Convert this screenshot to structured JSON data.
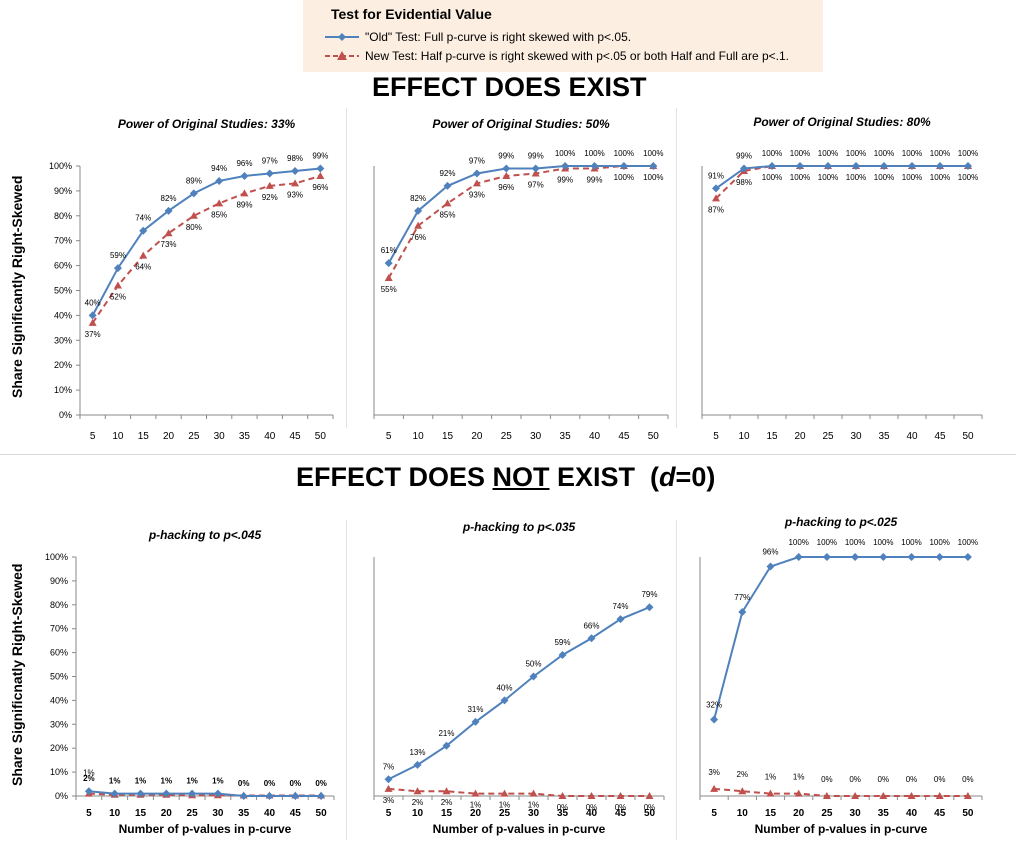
{
  "legend": {
    "title": "Test for Evidential Value",
    "old_label": "\"Old\" Test: Full p-curve is right skewed with p<.05.",
    "new_label": "New Test: Half p-curve is right skewed with p<.05 or both Half and Full are p<.1."
  },
  "sections": {
    "top": "EFFECT DOES EXIST",
    "bottom_pre": "EFFECT DOES ",
    "bottom_not": "NOT",
    "bottom_post": " EXIST  (",
    "bottom_d": "d",
    "bottom_end": "=0)"
  },
  "colors": {
    "old": "#4f81bd",
    "new": "#c0504d"
  },
  "chart_data": [
    {
      "type": "line",
      "title": "Power of Original Studies: 33%",
      "ylabel": "Share Significantly Right-Skewed",
      "xlabel": "",
      "x": [
        5,
        10,
        15,
        20,
        25,
        30,
        35,
        40,
        45,
        50
      ],
      "ylim": [
        0,
        100
      ],
      "series": [
        {
          "name": "\"Old\" Test",
          "values": [
            40,
            59,
            74,
            82,
            89,
            94,
            96,
            97,
            98,
            99
          ],
          "labels": [
            "40%",
            "59%",
            "74%",
            "82%",
            "89%",
            "94%",
            "96%",
            "97%",
            "98%",
            "99%"
          ]
        },
        {
          "name": "New Test",
          "values": [
            37,
            52,
            64,
            73,
            80,
            85,
            89,
            92,
            93,
            96
          ],
          "labels": [
            "37%",
            "52%",
            "64%",
            "73%",
            "80%",
            "85%",
            "89%",
            "92%",
            "93%",
            "96%"
          ]
        }
      ]
    },
    {
      "type": "line",
      "title": "Power of Original Studies: 50%",
      "ylabel": "",
      "xlabel": "",
      "x": [
        5,
        10,
        15,
        20,
        25,
        30,
        35,
        40,
        45,
        50
      ],
      "ylim": [
        0,
        100
      ],
      "series": [
        {
          "name": "\"Old\" Test",
          "values": [
            61,
            82,
            92,
            97,
            99,
            99,
            100,
            100,
            100,
            100
          ],
          "labels": [
            "61%",
            "82%",
            "92%",
            "97%",
            "99%",
            "99%",
            "100%",
            "100%",
            "100%",
            "100%"
          ]
        },
        {
          "name": "New Test",
          "values": [
            55,
            76,
            85,
            93,
            96,
            97,
            99,
            99,
            100,
            100
          ],
          "labels": [
            "55%",
            "76%",
            "85%",
            "93%",
            "96%",
            "97%",
            "99%",
            "99%",
            "100%",
            "100%"
          ]
        }
      ]
    },
    {
      "type": "line",
      "title": "Power of Original Studies: 80%",
      "ylabel": "",
      "xlabel": "",
      "x": [
        5,
        10,
        15,
        20,
        25,
        30,
        35,
        40,
        45,
        50
      ],
      "ylim": [
        0,
        100
      ],
      "series": [
        {
          "name": "\"Old\" Test",
          "values": [
            91,
            99,
            100,
            100,
            100,
            100,
            100,
            100,
            100,
            100
          ],
          "labels": [
            "91%",
            "99%",
            "100%",
            "100%",
            "100%",
            "100%",
            "100%",
            "100%",
            "100%",
            "100%"
          ]
        },
        {
          "name": "New Test",
          "values": [
            87,
            98,
            100,
            100,
            100,
            100,
            100,
            100,
            100,
            100
          ],
          "labels": [
            "87%",
            "98%",
            "100%",
            "100%",
            "100%",
            "100%",
            "100%",
            "100%",
            "100%",
            "100%"
          ]
        }
      ]
    },
    {
      "type": "line",
      "title": "p-hacking to p<.045",
      "ylabel": "Share Significnatly Right-Skewed",
      "xlabel": "Number of p-values in p-curve",
      "x": [
        5,
        10,
        15,
        20,
        25,
        30,
        35,
        40,
        45,
        50
      ],
      "ylim": [
        0,
        100
      ],
      "series": [
        {
          "name": "\"Old\" Test",
          "values": [
            2,
            1,
            1,
            1,
            1,
            1,
            0,
            0,
            0,
            0
          ],
          "labels": [
            "2%",
            "1%",
            "1%",
            "1%",
            "1%",
            "1%",
            "0%",
            "0%",
            "0%",
            "0%"
          ]
        },
        {
          "name": "New Test",
          "values": [
            1,
            0.5,
            0.5,
            0.5,
            0.3,
            0.3,
            0.2,
            0.2,
            0.2,
            0.2
          ],
          "labels": [
            "1%",
            "",
            "",
            "",
            "",
            "",
            "",
            "",
            "",
            ""
          ]
        }
      ]
    },
    {
      "type": "line",
      "title": "p-hacking to p<.035",
      "ylabel": "",
      "xlabel": "Number of p-values in p-curve",
      "x": [
        5,
        10,
        15,
        20,
        25,
        30,
        35,
        40,
        45,
        50
      ],
      "ylim": [
        0,
        100
      ],
      "series": [
        {
          "name": "\"Old\" Test",
          "values": [
            7,
            13,
            21,
            31,
            40,
            50,
            59,
            66,
            74,
            79
          ],
          "labels": [
            "7%",
            "13%",
            "21%",
            "31%",
            "40%",
            "50%",
            "59%",
            "66%",
            "74%",
            "79%"
          ]
        },
        {
          "name": "New Test",
          "values": [
            3,
            2,
            2,
            1,
            1,
            1,
            0,
            0,
            0,
            0
          ],
          "labels": [
            "3%",
            "2%",
            "2%",
            "1%",
            "1%",
            "1%",
            "0%",
            "0%",
            "0%",
            "0%"
          ]
        }
      ]
    },
    {
      "type": "line",
      "title": "p-hacking to p<.025",
      "ylabel": "",
      "xlabel": "Number of p-values in p-curve",
      "x": [
        5,
        10,
        15,
        20,
        25,
        30,
        35,
        40,
        45,
        50
      ],
      "ylim": [
        0,
        100
      ],
      "series": [
        {
          "name": "\"Old\" Test",
          "values": [
            32,
            77,
            96,
            100,
            100,
            100,
            100,
            100,
            100,
            100
          ],
          "labels": [
            "32%",
            "77%",
            "96%",
            "100%",
            "100%",
            "100%",
            "100%",
            "100%",
            "100%",
            "100%"
          ]
        },
        {
          "name": "New Test",
          "values": [
            3,
            2,
            1,
            1,
            0,
            0,
            0,
            0,
            0,
            0
          ],
          "labels": [
            "3%",
            "2%",
            "1%",
            "1%",
            "0%",
            "0%",
            "0%",
            "0%",
            "0%",
            "0%"
          ]
        }
      ]
    }
  ]
}
